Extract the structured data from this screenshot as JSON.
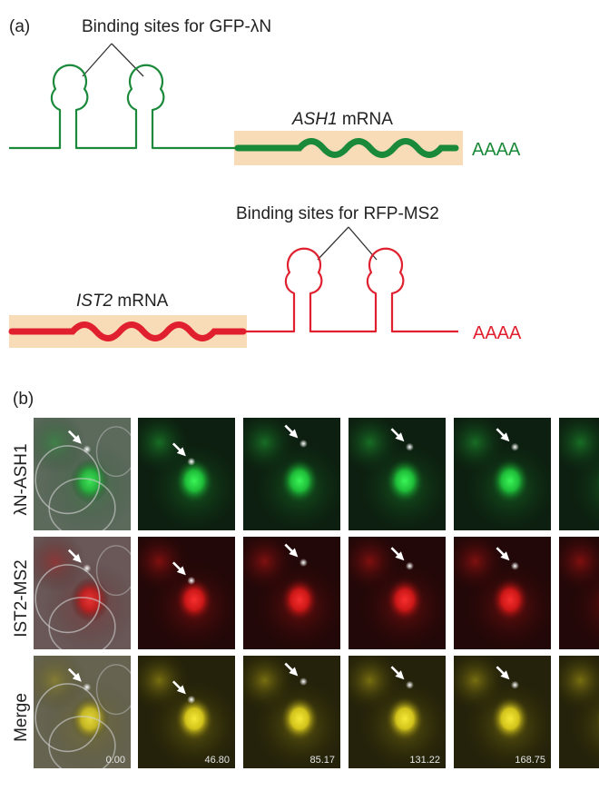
{
  "panel_a": {
    "label": "(a)",
    "construct_1": {
      "binding_label": "Binding sites for GFP-λN",
      "mrna_gene": "ASH1",
      "mrna_suffix": " mRNA",
      "polya": "AAAA",
      "color": "#1a8a3a",
      "band_color": "#f8dcb8"
    },
    "construct_2": {
      "binding_label": "Binding sites for RFP-MS2",
      "mrna_gene": "IST2",
      "mrna_suffix": " mRNA",
      "polya": "AAAA",
      "color": "#e0202e",
      "band_color": "#f8dcb8"
    }
  },
  "panel_b": {
    "label": "(b)",
    "rows": [
      {
        "label": "λN-ASH1",
        "channel": "green"
      },
      {
        "label": "IST2-MS2",
        "channel": "red"
      },
      {
        "label": "Merge",
        "channel": "yellow"
      }
    ],
    "timestamps": [
      "0.00",
      "46.80",
      "85.17",
      "131.22",
      "168.75"
    ]
  }
}
